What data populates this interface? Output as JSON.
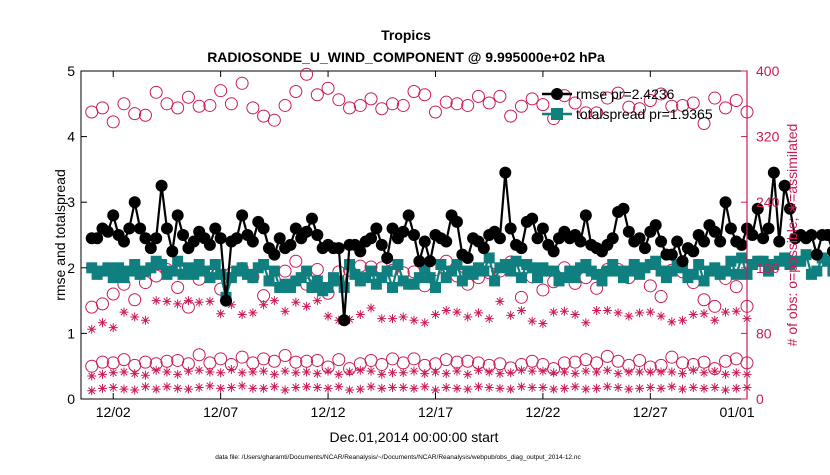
{
  "chart_data": {
    "type": "line",
    "title": "Tropics",
    "subtitle": "RADIOSONDE_U_WIND_COMPONENT @ 9.995000e+02 hPa",
    "xlabel": "Dec.01,2014 00:00:00 start",
    "ylabel_left": "rmse and totalspread",
    "ylabel_right": "# of obs: o=possible; ∗=assimilated",
    "footer": "data file: /Users/gharamti/Documents/NCAR/Reanalysis/~/Documents/NCAR/Reanalysis/webpub/obs_diag_output_2014-12.nc",
    "xlim": [
      0.5,
      31.5
    ],
    "ylim_left": [
      0,
      5
    ],
    "ylim_right": [
      0,
      400
    ],
    "x_ticks": [
      {
        "value": 2,
        "label": "12/02"
      },
      {
        "value": 7,
        "label": "12/07"
      },
      {
        "value": 12,
        "label": "12/12"
      },
      {
        "value": 17,
        "label": "12/17"
      },
      {
        "value": 22,
        "label": "12/22"
      },
      {
        "value": 27,
        "label": "12/27"
      },
      {
        "value": 32,
        "label": "01/01"
      }
    ],
    "y_ticks_left": [
      0,
      1,
      2,
      3,
      4,
      5
    ],
    "y_ticks_right": [
      0,
      80,
      160,
      240,
      320,
      400
    ],
    "colors": {
      "axes": "#000000",
      "totalspread": "#0f7f7f",
      "obs": "#cc1b55",
      "rmse": "#000000"
    },
    "legend": {
      "position": "top-right",
      "entries": [
        {
          "label": "rmse pr=2.4236",
          "color": "#000000",
          "marker": "circle"
        },
        {
          "label": "totalspread pr=1.9365",
          "color": "#0f7f7f",
          "marker": "square"
        }
      ]
    },
    "series": [
      {
        "name": "rmse pr=2.4236",
        "axis": "left",
        "x_start": 1.0,
        "x_step": 0.25,
        "values": [
          2.45,
          2.45,
          2.6,
          2.55,
          2.8,
          2.5,
          2.4,
          2.6,
          3.0,
          2.6,
          2.45,
          2.3,
          2.45,
          3.25,
          2.6,
          2.25,
          2.8,
          2.5,
          2.3,
          2.4,
          2.55,
          2.45,
          2.35,
          2.6,
          2.45,
          1.5,
          2.4,
          2.45,
          2.8,
          2.5,
          2.4,
          2.7,
          2.6,
          2.3,
          2.2,
          2.45,
          2.3,
          2.35,
          2.6,
          2.45,
          2.55,
          2.75,
          2.5,
          2.3,
          2.35,
          2.3,
          2.3,
          1.2,
          2.35,
          2.35,
          2.25,
          2.4,
          2.45,
          2.6,
          2.35,
          2.15,
          2.6,
          2.45,
          2.55,
          2.8,
          2.5,
          2.1,
          2.4,
          2.1,
          2.5,
          2.45,
          2.4,
          2.8,
          2.7,
          2.2,
          2.15,
          2.45,
          2.4,
          2.3,
          2.5,
          2.55,
          2.45,
          3.45,
          2.6,
          2.35,
          2.3,
          2.7,
          2.75,
          2.45,
          2.6,
          2.35,
          2.25,
          2.45,
          2.55,
          2.45,
          2.5,
          2.4,
          2.8,
          2.35,
          2.3,
          2.25,
          2.35,
          2.45,
          2.85,
          2.9,
          2.55,
          2.4,
          2.45,
          2.3,
          2.55,
          2.65,
          2.4,
          2.2,
          2.2,
          2.4,
          2.1,
          2.3,
          2.25,
          2.5,
          2.4,
          2.65,
          2.55,
          2.4,
          3.0,
          2.6,
          2.4,
          2.35,
          2.6,
          2.5,
          2.9,
          2.45,
          2.6,
          3.45,
          2.4,
          3.25,
          2.9,
          2.45,
          2.5,
          2.45,
          2.5,
          2.2,
          2.5,
          2.5,
          2.25,
          1.8
        ]
      },
      {
        "name": "totalspread pr=1.9365",
        "axis": "left",
        "x_start": 1.0,
        "x_step": 0.25,
        "values": [
          2.0,
          1.9,
          1.95,
          2.0,
          1.85,
          2.0,
          1.85,
          1.95,
          2.05,
          1.9,
          1.95,
          2.0,
          2.1,
          2.05,
          1.9,
          1.95,
          2.1,
          1.9,
          2.0,
          1.9,
          2.05,
          1.95,
          1.85,
          2.05,
          1.9,
          1.55,
          1.85,
          1.95,
          2.0,
          1.9,
          1.85,
          2.0,
          2.05,
          1.8,
          1.95,
          1.7,
          1.75,
          1.7,
          1.8,
          1.85,
          1.95,
          1.7,
          1.8,
          1.65,
          1.7,
          1.85,
          1.8,
          1.7,
          2.05,
          1.9,
          1.8,
          1.85,
          1.95,
          1.75,
          1.85,
          1.95,
          1.7,
          2.05,
          1.8,
          1.75,
          1.75,
          1.85,
          2.0,
          1.85,
          1.7,
          2.05,
          1.85,
          1.95,
          2.05,
          1.8,
          1.95,
          1.9,
          2.0,
          1.95,
          2.15,
          1.8,
          2.0,
          2.05,
          1.95,
          2.1,
          1.85,
          2.05,
          2.0,
          1.85,
          2.0,
          1.95,
          1.95,
          1.8,
          1.85,
          1.95,
          1.85,
          2.0,
          2.05,
          1.95,
          1.9,
          1.8,
          1.95,
          2.05,
          1.95,
          1.85,
          1.95,
          2.05,
          1.9,
          2.0,
          2.05,
          2.1,
          1.95,
          1.85,
          1.95,
          2.05,
          2.0,
          1.85,
          1.9,
          2.05,
          1.8,
          1.95,
          2.0,
          1.9,
          1.95,
          2.1,
          1.9,
          2.15,
          1.9,
          2.05,
          2.1,
          2.1,
          1.95,
          2.05,
          2.1,
          2.15,
          2.05,
          2.1,
          2.1,
          2.2,
          1.9,
          1.95,
          2.15,
          2.1,
          1.95,
          1.6
        ]
      },
      {
        "name": "possible",
        "axis": "right",
        "marker": "circle",
        "x_start": 1.0,
        "x_step": 0.5,
        "groups": [
          {
            "name": "possible (upper)",
            "values": [
              350,
              355,
              338,
              360,
              348,
              346,
              374,
              360,
              355,
              368,
              357,
              358,
              376,
              360,
              385,
              355,
              345,
              340,
              358,
              375,
              396,
              371,
              379,
              365,
              355,
              358,
              366,
              354,
              360,
              358,
              375,
              371,
              350,
              362,
              360,
              358,
              369,
              361,
              369,
              345,
              357,
              366,
              359,
              342,
              370,
              361,
              349,
              349,
              367,
              373,
              356,
              354,
              364,
              372,
              357,
              358,
              361,
              336,
              367,
              355,
              364,
              350
            ]
          },
          {
            "name": "possible (middle)",
            "values": [
              112,
              116,
              128,
              140,
              121,
              142,
              150,
              158,
              136,
              112,
              146,
              155,
              134,
              153,
              159,
              149,
              126,
              145,
              156,
              168,
              140,
              158,
              129,
              155,
              157,
              162,
              161,
              160,
              157,
              154,
              155,
              138,
              158,
              168,
              150,
              140,
              148,
              154,
              156,
              167,
              124,
              149,
              133,
              143,
              160,
              141,
              148,
              135,
              158,
              158,
              148,
              158,
              138,
              125,
              157,
              155,
              142,
              121,
              113,
              147,
              137,
              113
            ]
          },
          {
            "name": "possible (lower)",
            "values": [
              40,
              45,
              44,
              48,
              41,
              45,
              43,
              46,
              47,
              43,
              54,
              44,
              49,
              42,
              51,
              44,
              49,
              46,
              53,
              45,
              46,
              47,
              39,
              48,
              37,
              43,
              47,
              42,
              49,
              44,
              49,
              41,
              43,
              48,
              45,
              46,
              44,
              41,
              43,
              38,
              42,
              46,
              42,
              37,
              44,
              45,
              48,
              44,
              52,
              46,
              41,
              47,
              39,
              41,
              51,
              44,
              42,
              45,
              37,
              46,
              49,
              44
            ]
          }
        ]
      },
      {
        "name": "assimilated",
        "axis": "right",
        "marker": "asterisk",
        "x_start": 1.0,
        "x_step": 0.5,
        "groups": [
          {
            "name": "assimilated (upper)",
            "values": [
              85,
              93,
              87,
              106,
              100,
              96,
              120,
              119,
              116,
              120,
              118,
              119,
              104,
              115,
              103,
              105,
              115,
              120,
              107,
              118,
              113,
              120,
              101,
              96,
              97,
              103,
              111,
              98,
              98,
              100,
              96,
              93,
              103,
              108,
              106,
              100,
              105,
              98,
              119,
              102,
              108,
              95,
              92,
              106,
              107,
              103,
              93,
              108,
              108,
              105,
              101,
              105,
              106,
              101,
              94,
              96,
              103,
              104,
              96,
              106,
              107,
              98
            ]
          },
          {
            "name": "assimilated (lower)",
            "values": [
              28,
              30,
              32,
              33,
              31,
              29,
              35,
              33,
              30,
              34,
              35,
              33,
              32,
              36,
              32,
              33,
              34,
              30,
              34,
              32,
              33,
              31,
              34,
              30,
              33,
              35,
              34,
              30,
              32,
              32,
              34,
              31,
              33,
              31,
              34,
              30,
              35,
              33,
              31,
              32,
              35,
              34,
              34,
              32,
              33,
              31,
              34,
              33,
              35,
              31,
              33,
              33,
              33,
              33,
              33,
              31,
              35,
              32,
              34,
              30,
              32,
              30
            ]
          },
          {
            "name": "assimilated (bottom)",
            "values": [
              10,
              13,
              14,
              12,
              11,
              15,
              12,
              15,
              13,
              12,
              14,
              16,
              13,
              14,
              16,
              13,
              13,
              15,
              11,
              14,
              15,
              14,
              13,
              15,
              11,
              12,
              15,
              13,
              14,
              14,
              13,
              15,
              11,
              14,
              13,
              12,
              15,
              14,
              13,
              12,
              15,
              14,
              14,
              12,
              13,
              15,
              12,
              13,
              15,
              14,
              12,
              13,
              14,
              13,
              15,
              12,
              14,
              13,
              14,
              11,
              13,
              14
            ]
          }
        ]
      }
    ]
  }
}
